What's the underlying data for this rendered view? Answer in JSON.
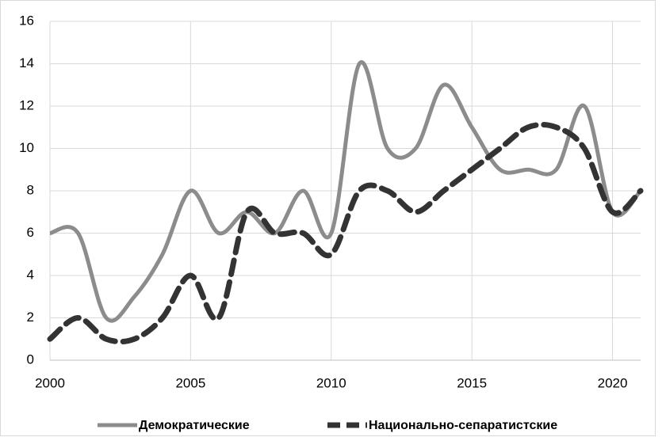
{
  "chart_data": {
    "type": "line",
    "x": [
      2000,
      2001,
      2002,
      2003,
      2004,
      2005,
      2006,
      2007,
      2008,
      2009,
      2010,
      2011,
      2012,
      2013,
      2014,
      2015,
      2016,
      2017,
      2018,
      2019,
      2020,
      2021
    ],
    "series": [
      {
        "name": "Демократические",
        "color": "#8c8c8c",
        "dashed": false,
        "values": [
          6,
          6,
          2,
          3,
          5,
          8,
          6,
          7,
          6,
          8,
          6,
          14,
          10,
          10,
          13,
          11,
          9,
          9,
          9,
          12,
          7,
          8
        ]
      },
      {
        "name": "Национально-сепаратистские",
        "color": "#333333",
        "dashed": true,
        "values": [
          1,
          2,
          1,
          1,
          2,
          4,
          2,
          7,
          6,
          6,
          5,
          8,
          8,
          7,
          8,
          9,
          10,
          11,
          11,
          10,
          7,
          8
        ]
      }
    ],
    "xlim": [
      2000,
      2021
    ],
    "xticks": [
      2000,
      2005,
      2010,
      2015,
      2020
    ],
    "ylim": [
      0,
      16
    ],
    "yticks": [
      0,
      2,
      4,
      6,
      8,
      10,
      12,
      14,
      16
    ],
    "grid": true,
    "smooth": true,
    "legend": "bottom"
  }
}
